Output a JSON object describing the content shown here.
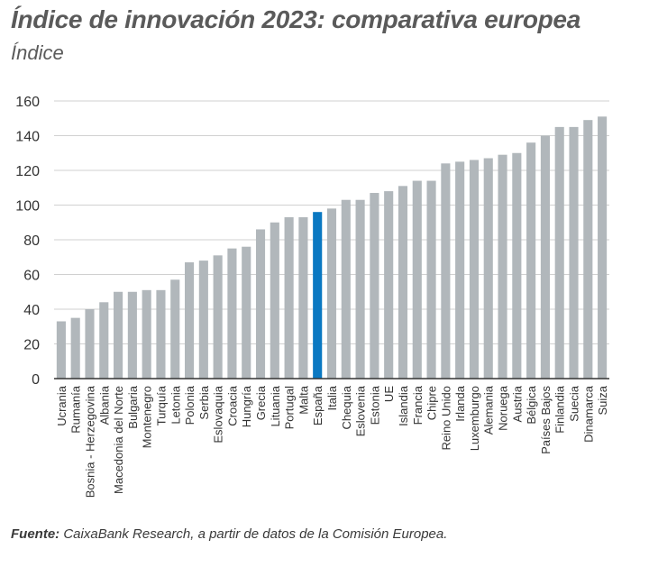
{
  "title": "Índice de innovación 2023: comparativa europea",
  "subtitle": "Índice",
  "source": {
    "label": "Fuente:",
    "text": " CaixaBank Research, a partir de datos de la Comisión Europea."
  },
  "colors": {
    "bar": "#b1b7bb",
    "highlight": "#0a78c2",
    "grid": "#d0d0d0",
    "axis": "#333333"
  },
  "chart_data": {
    "type": "bar",
    "title": "Índice de innovación 2023: comparativa europea",
    "ylabel": "Índice",
    "xlabel": "",
    "ylim": [
      0,
      160
    ],
    "yticks": [
      0,
      20,
      40,
      60,
      80,
      100,
      120,
      140,
      160
    ],
    "grid": true,
    "highlight": "España",
    "categories": [
      "Ucrania",
      "Rumanía",
      "Bosnia - Herzegovina",
      "Albania",
      "Macedonia del Norte",
      "Bulgaria",
      "Montenegro",
      "Turquía",
      "Letonia",
      "Polonia",
      "Serbia",
      "Eslovaquia",
      "Croacia",
      "Hungría",
      "Grecia",
      "Lituania",
      "Portugal",
      "Malta",
      "España",
      "Italia",
      "Chequia",
      "Eslovenia",
      "Estonia",
      "UE",
      "Islandia",
      "Francia",
      "Chipre",
      "Reino Unido",
      "Irlanda",
      "Luxemburgo",
      "Alemania",
      "Noruega",
      "Austria",
      "Bélgica",
      "Países Bajos",
      "Finlandia",
      "Suecia",
      "Dinamarca",
      "Suiza"
    ],
    "values": [
      33,
      35,
      40,
      44,
      50,
      50,
      51,
      51,
      57,
      67,
      68,
      71,
      75,
      76,
      86,
      90,
      93,
      93,
      96,
      98,
      103,
      103,
      107,
      108,
      111,
      114,
      114,
      124,
      125,
      126,
      127,
      129,
      130,
      136,
      140,
      145,
      145,
      149,
      151
    ]
  }
}
